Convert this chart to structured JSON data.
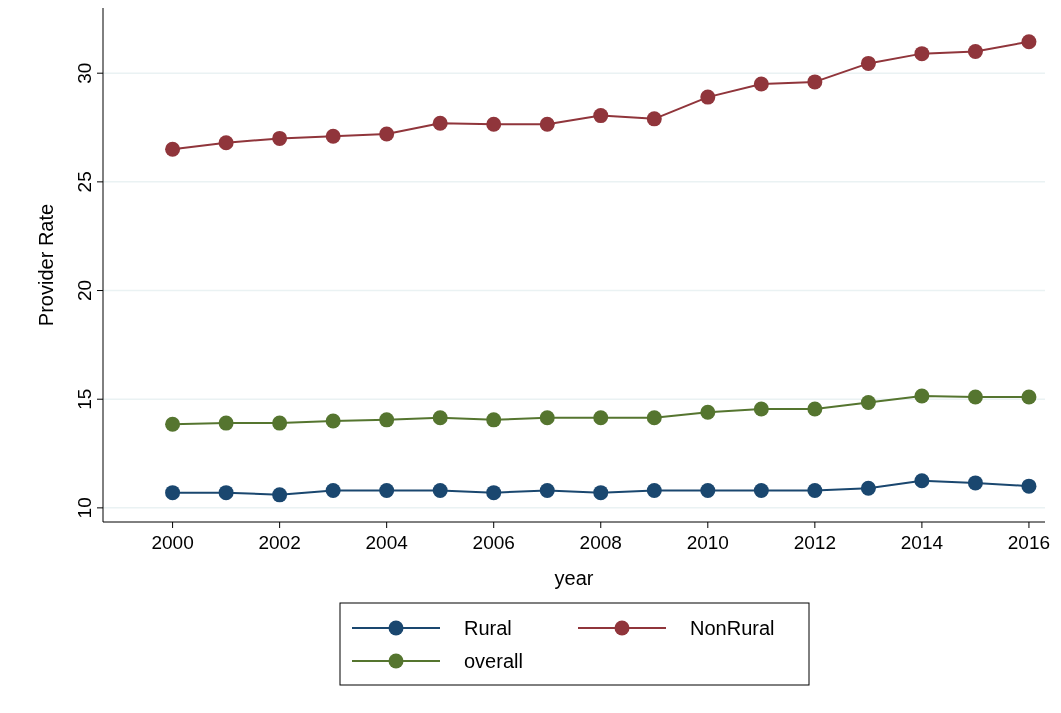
{
  "chart_data": {
    "type": "line",
    "xlabel": "year",
    "ylabel": "Provider Rate",
    "x": [
      2000,
      2001,
      2002,
      2003,
      2004,
      2005,
      2006,
      2007,
      2008,
      2009,
      2010,
      2011,
      2012,
      2013,
      2014,
      2015,
      2016
    ],
    "xlim": [
      1998.7,
      2016.3
    ],
    "xticks": [
      2000,
      2002,
      2004,
      2006,
      2008,
      2010,
      2012,
      2014,
      2016
    ],
    "ylim": [
      9.35,
      33
    ],
    "yticks": [
      10,
      15,
      20,
      25,
      30
    ],
    "grid": "y",
    "legend": "bottom",
    "marker": "circle",
    "line_style": "solid",
    "series": [
      {
        "name": "Rural",
        "color": "#1a476f",
        "values": [
          10.7,
          10.7,
          10.6,
          10.8,
          10.8,
          10.8,
          10.7,
          10.8,
          10.7,
          10.8,
          10.8,
          10.8,
          10.8,
          10.9,
          11.25,
          11.15,
          11.0
        ]
      },
      {
        "name": "NonRural",
        "color": "#90353b",
        "values": [
          26.5,
          26.8,
          27.0,
          27.1,
          27.2,
          27.7,
          27.65,
          27.65,
          28.05,
          27.9,
          28.9,
          29.5,
          29.6,
          30.45,
          30.9,
          31.0,
          31.45
        ]
      },
      {
        "name": "overall",
        "color": "#55752f",
        "values": [
          13.85,
          13.9,
          13.9,
          14.0,
          14.05,
          14.15,
          14.05,
          14.15,
          14.15,
          14.15,
          14.4,
          14.55,
          14.55,
          14.85,
          15.15,
          15.1,
          15.1
        ]
      }
    ]
  }
}
